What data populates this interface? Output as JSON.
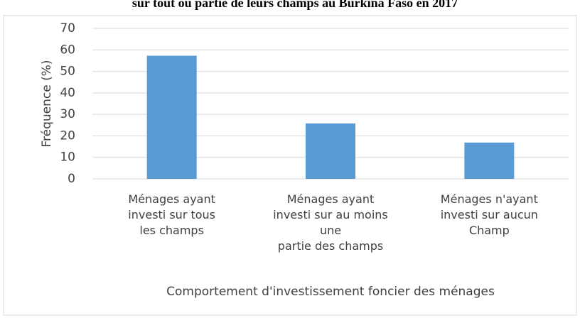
{
  "chart_data": {
    "type": "bar",
    "title": "sur tout ou partie de leurs champs au Burkina Faso en 2017",
    "categories": [
      "Ménages ayant\ninvesti sur tous\nles champs",
      "Ménages ayant\ninvesti sur au moins\nune\npartie des champs",
      "Ménages n'ayant\ninvesti sur aucun\nChamp"
    ],
    "values": [
      57.3,
      25.8,
      16.9
    ],
    "color": "#5b9bd5",
    "x_label": "Comportement d'investissement foncier des ménages",
    "y_label": "Fréquence (%)",
    "ylim": [
      0,
      70
    ],
    "yticks": [
      0,
      10,
      20,
      30,
      40,
      50,
      60,
      70
    ],
    "grid": true
  }
}
